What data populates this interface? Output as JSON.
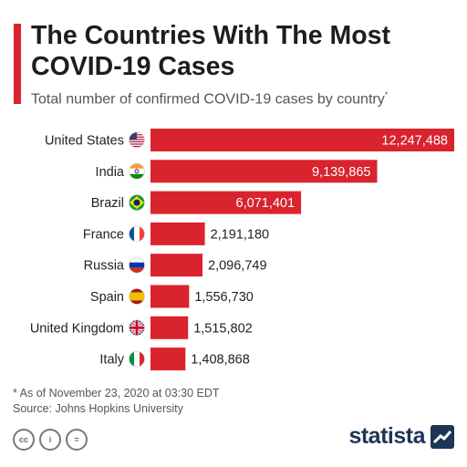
{
  "header": {
    "title": "The Countries With The Most COVID-19 Cases",
    "subtitle": "Total number of confirmed COVID-19 cases by country",
    "subtitle_mark": "*"
  },
  "chart_data": {
    "type": "bar",
    "orientation": "horizontal",
    "categories": [
      "United States",
      "India",
      "Brazil",
      "France",
      "Russia",
      "Spain",
      "United Kingdom",
      "Italy"
    ],
    "values": [
      12247488,
      9139865,
      6071401,
      2191180,
      2096749,
      1556730,
      1515802,
      1408868
    ],
    "value_labels": [
      "12,247,488",
      "9,139,865",
      "6,071,401",
      "2,191,180",
      "2,096,749",
      "1,556,730",
      "1,515,802",
      "1,408,868"
    ],
    "flag_icons": [
      "us-flag-icon",
      "india-flag-icon",
      "brazil-flag-icon",
      "france-flag-icon",
      "russia-flag-icon",
      "spain-flag-icon",
      "uk-flag-icon",
      "italy-flag-icon"
    ],
    "bar_color": "#d9232e",
    "grid": false
  },
  "footer": {
    "note": "* As of November 23, 2020 at 03:30 EDT",
    "source": "Source: Johns Hopkins University",
    "license_icons": [
      "cc-icon",
      "attribution-icon",
      "no-derivatives-icon"
    ],
    "license_glyphs": [
      "cc",
      "i",
      "="
    ],
    "brand": "statista"
  }
}
